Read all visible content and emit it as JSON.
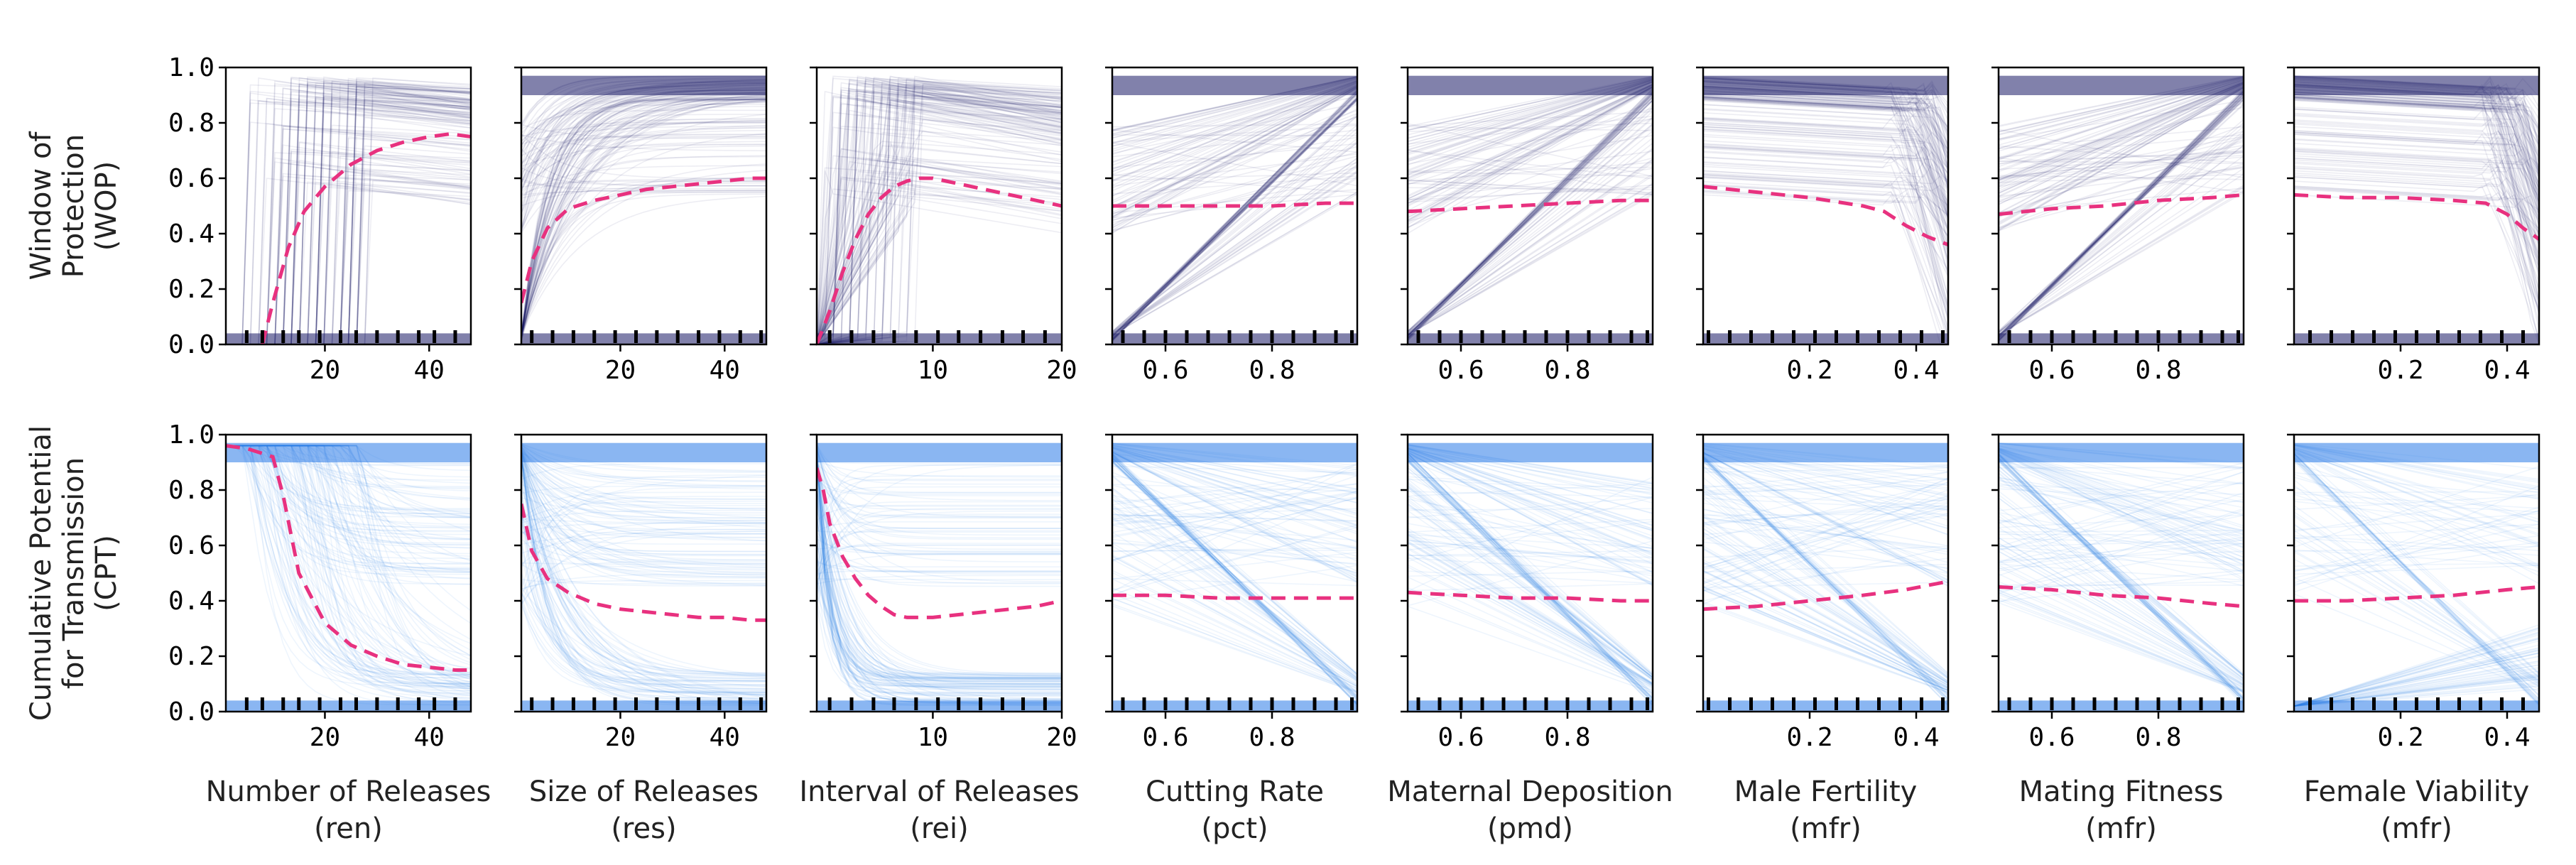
{
  "chart_data": {
    "type": "line",
    "layout": "2 rows x 8 columns of ICE / partial-dependence panels",
    "rows": [
      {
        "ylabel_lines": [
          "Window of",
          "Protection",
          "(WOP)"
        ],
        "ylim": [
          0,
          1
        ],
        "yticks": [
          "0.0",
          "0.2",
          "0.4",
          "0.6",
          "0.8",
          "1.0"
        ],
        "ice_color": "#1a1a66",
        "mean_color": "#e8317f"
      },
      {
        "ylabel_lines": [
          "Cumulative Potential",
          "for Transmission",
          "(CPT)"
        ],
        "ylim": [
          0,
          1
        ],
        "yticks": [
          "0.0",
          "0.2",
          "0.4",
          "0.6",
          "0.8",
          "1.0"
        ],
        "ice_color": "#2a7ae8",
        "mean_color": "#e8317f"
      }
    ],
    "panels": [
      {
        "xlabel": [
          "Number of Releases",
          "(ren)"
        ],
        "xlim": [
          1,
          48
        ],
        "xticks": [
          "20",
          "40"
        ],
        "xtick_values": [
          20,
          40
        ],
        "rug": [
          5,
          8,
          12,
          15,
          19,
          23,
          26,
          30,
          34,
          38,
          41,
          45
        ],
        "wop_mean": {
          "x": [
            8,
            10,
            13,
            16,
            20,
            25,
            30,
            35,
            40,
            44,
            48
          ],
          "y": [
            0.0,
            0.15,
            0.35,
            0.48,
            0.57,
            0.65,
            0.7,
            0.73,
            0.75,
            0.76,
            0.75
          ]
        },
        "cpt_mean": {
          "x": [
            1,
            5,
            10,
            12,
            15,
            20,
            25,
            30,
            35,
            40,
            45,
            48
          ],
          "y": [
            0.96,
            0.95,
            0.92,
            0.78,
            0.5,
            0.32,
            0.24,
            0.2,
            0.17,
            0.16,
            0.15,
            0.15
          ]
        }
      },
      {
        "xlabel": [
          "Size of Releases",
          "(res)"
        ],
        "xlim": [
          1,
          48
        ],
        "xticks": [
          "20",
          "40"
        ],
        "xtick_values": [
          20,
          40
        ],
        "rug": [
          3,
          7,
          11,
          15,
          19,
          23,
          27,
          31,
          35,
          39,
          43,
          47
        ],
        "wop_mean": {
          "x": [
            1,
            3,
            6,
            10,
            15,
            20,
            25,
            30,
            35,
            40,
            45,
            48
          ],
          "y": [
            0.15,
            0.3,
            0.42,
            0.49,
            0.52,
            0.54,
            0.56,
            0.57,
            0.58,
            0.59,
            0.6,
            0.6
          ]
        },
        "cpt_mean": {
          "x": [
            1,
            3,
            6,
            10,
            15,
            20,
            25,
            30,
            35,
            40,
            45,
            48
          ],
          "y": [
            0.75,
            0.58,
            0.48,
            0.43,
            0.39,
            0.37,
            0.36,
            0.35,
            0.34,
            0.34,
            0.33,
            0.33
          ]
        }
      },
      {
        "xlabel": [
          "Interval of Releases",
          "(rei)"
        ],
        "xlim": [
          1,
          20
        ],
        "xticks": [
          "10",
          "20"
        ],
        "xtick_values": [
          10,
          20
        ],
        "rug": [
          2,
          3.7,
          5.4,
          7,
          8.7,
          10.4,
          12,
          13.7,
          15.4,
          17,
          18.7
        ],
        "wop_mean": {
          "x": [
            1,
            2,
            3,
            4,
            5,
            6,
            7,
            8,
            9,
            10,
            12,
            14,
            16,
            18,
            20
          ],
          "y": [
            0.0,
            0.12,
            0.26,
            0.38,
            0.47,
            0.53,
            0.57,
            0.59,
            0.6,
            0.6,
            0.58,
            0.56,
            0.54,
            0.52,
            0.5
          ]
        },
        "cpt_mean": {
          "x": [
            1,
            1.5,
            2,
            3,
            4,
            5,
            6,
            7,
            8,
            9,
            10,
            12,
            14,
            16,
            18,
            20
          ],
          "y": [
            0.88,
            0.8,
            0.68,
            0.56,
            0.48,
            0.42,
            0.38,
            0.35,
            0.34,
            0.34,
            0.34,
            0.35,
            0.36,
            0.37,
            0.38,
            0.4
          ]
        }
      },
      {
        "xlabel": [
          "Cutting Rate",
          "(pct)"
        ],
        "xlim": [
          0.5,
          0.96
        ],
        "xticks": [
          "0.6",
          "0.8"
        ],
        "xtick_values": [
          0.6,
          0.8
        ],
        "rug": [
          0.52,
          0.56,
          0.6,
          0.64,
          0.68,
          0.72,
          0.76,
          0.8,
          0.84,
          0.88,
          0.92,
          0.95
        ],
        "wop_mean": {
          "x": [
            0.5,
            0.6,
            0.7,
            0.8,
            0.9,
            0.96
          ],
          "y": [
            0.5,
            0.5,
            0.5,
            0.5,
            0.51,
            0.51
          ]
        },
        "cpt_mean": {
          "x": [
            0.5,
            0.6,
            0.7,
            0.8,
            0.9,
            0.96
          ],
          "y": [
            0.42,
            0.42,
            0.41,
            0.41,
            0.41,
            0.41
          ]
        }
      },
      {
        "xlabel": [
          "Maternal Deposition",
          "(pmd)"
        ],
        "xlim": [
          0.5,
          0.96
        ],
        "xticks": [
          "0.6",
          "0.8"
        ],
        "xtick_values": [
          0.6,
          0.8
        ],
        "rug": [
          0.52,
          0.56,
          0.6,
          0.64,
          0.68,
          0.72,
          0.76,
          0.8,
          0.84,
          0.88,
          0.92,
          0.95
        ],
        "wop_mean": {
          "x": [
            0.5,
            0.6,
            0.7,
            0.8,
            0.9,
            0.96
          ],
          "y": [
            0.48,
            0.49,
            0.5,
            0.51,
            0.52,
            0.52
          ]
        },
        "cpt_mean": {
          "x": [
            0.5,
            0.6,
            0.7,
            0.8,
            0.9,
            0.96
          ],
          "y": [
            0.43,
            0.42,
            0.41,
            0.41,
            0.4,
            0.4
          ]
        }
      },
      {
        "xlabel": [
          "Male Fertility",
          "(mfr)"
        ],
        "xlim": [
          0.0,
          0.46
        ],
        "xticks": [
          "0.2",
          "0.4"
        ],
        "xtick_values": [
          0.2,
          0.4
        ],
        "rug": [
          0.01,
          0.05,
          0.09,
          0.13,
          0.17,
          0.21,
          0.25,
          0.29,
          0.33,
          0.37,
          0.41,
          0.45
        ],
        "wop_mean": {
          "x": [
            0.0,
            0.1,
            0.2,
            0.3,
            0.34,
            0.38,
            0.42,
            0.46
          ],
          "y": [
            0.57,
            0.55,
            0.53,
            0.5,
            0.48,
            0.43,
            0.39,
            0.36
          ]
        },
        "cpt_mean": {
          "x": [
            0.0,
            0.1,
            0.2,
            0.3,
            0.38,
            0.46
          ],
          "y": [
            0.37,
            0.38,
            0.4,
            0.42,
            0.44,
            0.47
          ]
        }
      },
      {
        "xlabel": [
          "Mating Fitness",
          "(mfr)"
        ],
        "xlim": [
          0.5,
          0.96
        ],
        "xticks": [
          "0.6",
          "0.8"
        ],
        "xtick_values": [
          0.6,
          0.8
        ],
        "rug": [
          0.52,
          0.56,
          0.6,
          0.64,
          0.68,
          0.72,
          0.76,
          0.8,
          0.84,
          0.88,
          0.92,
          0.95
        ],
        "wop_mean": {
          "x": [
            0.5,
            0.6,
            0.7,
            0.8,
            0.9,
            0.96
          ],
          "y": [
            0.47,
            0.49,
            0.5,
            0.52,
            0.53,
            0.54
          ]
        },
        "cpt_mean": {
          "x": [
            0.5,
            0.6,
            0.7,
            0.8,
            0.9,
            0.96
          ],
          "y": [
            0.45,
            0.44,
            0.42,
            0.41,
            0.39,
            0.38
          ]
        }
      },
      {
        "xlabel": [
          "Female Viability",
          "(mfr)"
        ],
        "xlim": [
          0.0,
          0.46
        ],
        "xticks": [
          "0.2",
          "0.4"
        ],
        "xtick_values": [
          0.2,
          0.4
        ],
        "rug": [
          0.03,
          0.07,
          0.11,
          0.15,
          0.19,
          0.23,
          0.27,
          0.31,
          0.35,
          0.39,
          0.43
        ],
        "wop_mean": {
          "x": [
            0.0,
            0.1,
            0.2,
            0.3,
            0.36,
            0.4,
            0.43,
            0.46
          ],
          "y": [
            0.54,
            0.53,
            0.53,
            0.52,
            0.51,
            0.47,
            0.42,
            0.38
          ]
        },
        "cpt_mean": {
          "x": [
            0.0,
            0.1,
            0.2,
            0.3,
            0.4,
            0.46
          ],
          "y": [
            0.4,
            0.4,
            0.41,
            0.42,
            0.44,
            0.45
          ]
        }
      }
    ]
  }
}
